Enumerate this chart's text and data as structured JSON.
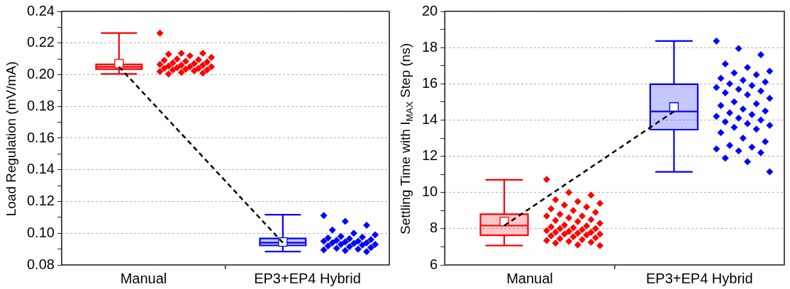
{
  "chart_data": [
    {
      "type": "box",
      "categories": [
        "Manual",
        "EP3+EP4 Hybrid"
      ],
      "ylabel": "Load Regulation (mV/mA)",
      "ylim": [
        0.08,
        0.24
      ],
      "yticks": [
        0.08,
        {
          "value": 0.09,
          "label": null
        },
        {
          "value": 0.1,
          "label": "0.10"
        },
        {
          "value": 0.11,
          "label": null
        },
        0.12,
        {
          "value": 0.13,
          "label": null
        },
        0.14,
        {
          "value": 0.15,
          "label": null
        },
        0.16,
        {
          "value": 0.17,
          "label": null
        },
        0.18,
        {
          "value": 0.19,
          "label": null
        },
        {
          "value": 0.2,
          "label": "0.20"
        },
        {
          "value": 0.21,
          "label": null
        },
        0.22,
        {
          "value": 0.23,
          "label": null
        },
        0.24
      ],
      "grid": "y",
      "series": [
        {
          "colors": [
            "#ff0000",
            "#0000ff"
          ],
          "boxes": [
            {
              "low": 0.2005,
              "q1": 0.2035,
              "median": 0.205,
              "q3": 0.2065,
              "high": 0.2263,
              "mean": 0.207
            },
            {
              "low": 0.0884,
              "q1": 0.0923,
              "median": 0.094,
              "q3": 0.0967,
              "high": 0.1117,
              "mean": 0.0945
            }
          ]
        },
        {
          "type": "scatter",
          "color": "#ff0000",
          "marker": "diamond",
          "x": [
            "Manual",
            "Manual",
            "Manual",
            "Manual",
            "Manual",
            "Manual",
            "Manual",
            "Manual",
            "Manual",
            "Manual",
            "Manual",
            "Manual",
            "Manual",
            "Manual",
            "Manual",
            "Manual",
            "Manual",
            "Manual",
            "Manual",
            "Manual",
            "Manual",
            "Manual",
            "Manual",
            "Manual",
            "Manual",
            "Manual",
            "Manual",
            "Manual",
            "Manual",
            "Manual"
          ],
          "values": [
            0.2263,
            0.2135,
            0.2135,
            0.213,
            0.212,
            0.211,
            0.21,
            0.2095,
            0.209,
            0.2085,
            0.208,
            0.2075,
            0.207,
            0.2065,
            0.206,
            0.206,
            0.2055,
            0.205,
            0.205,
            0.2045,
            0.204,
            0.204,
            0.2035,
            0.203,
            0.203,
            0.2025,
            0.202,
            0.2015,
            0.201,
            0.2005
          ]
        },
        {
          "type": "scatter",
          "color": "#0000ff",
          "marker": "diamond",
          "x": [
            "EP3+EP4 Hybrid",
            "EP3+EP4 Hybrid",
            "EP3+EP4 Hybrid",
            "EP3+EP4 Hybrid",
            "EP3+EP4 Hybrid",
            "EP3+EP4 Hybrid",
            "EP3+EP4 Hybrid",
            "EP3+EP4 Hybrid",
            "EP3+EP4 Hybrid",
            "EP3+EP4 Hybrid",
            "EP3+EP4 Hybrid",
            "EP3+EP4 Hybrid",
            "EP3+EP4 Hybrid",
            "EP3+EP4 Hybrid",
            "EP3+EP4 Hybrid",
            "EP3+EP4 Hybrid",
            "EP3+EP4 Hybrid",
            "EP3+EP4 Hybrid",
            "EP3+EP4 Hybrid",
            "EP3+EP4 Hybrid",
            "EP3+EP4 Hybrid",
            "EP3+EP4 Hybrid",
            "EP3+EP4 Hybrid",
            "EP3+EP4 Hybrid",
            "EP3+EP4 Hybrid",
            "EP3+EP4 Hybrid",
            "EP3+EP4 Hybrid",
            "EP3+EP4 Hybrid",
            "EP3+EP4 Hybrid"
          ],
          "values": [
            0.1112,
            0.1075,
            0.105,
            0.102,
            0.1,
            0.099,
            0.098,
            0.0975,
            0.097,
            0.0965,
            0.096,
            0.0955,
            0.095,
            0.095,
            0.0945,
            0.094,
            0.094,
            0.0935,
            0.093,
            0.093,
            0.0925,
            0.092,
            0.0915,
            0.091,
            0.0905,
            0.09,
            0.0895,
            0.089,
            0.0884
          ]
        },
        {
          "type": "line",
          "color": "#000000",
          "line_style": "dashed",
          "marker": "none",
          "x": [
            "Manual",
            "EP3+EP4 Hybrid"
          ],
          "values": [
            0.205,
            0.094
          ]
        }
      ]
    },
    {
      "type": "box",
      "categories": [
        "Manual",
        "EP3+EP4 Hybrid"
      ],
      "ylabel": "Settling Time with I$_{MAX}$ Step (ns)",
      "ylim": [
        6,
        20
      ],
      "yticks": [
        6,
        {
          "value": 7,
          "label": null
        },
        8,
        {
          "value": 9,
          "label": null
        },
        10,
        {
          "value": 11,
          "label": null
        },
        12,
        {
          "value": 13,
          "label": null
        },
        14,
        {
          "value": 15,
          "label": null
        },
        16,
        {
          "value": 17,
          "label": null
        },
        18,
        {
          "value": 19,
          "label": null
        },
        20
      ],
      "grid": "y",
      "series": [
        {
          "colors": [
            "#ff0000",
            "#0000ff"
          ],
          "boxes": [
            {
              "low": 7.07,
              "q1": 7.64,
              "median": 8.17,
              "q3": 8.8,
              "high": 10.7,
              "mean": 8.4
            },
            {
              "low": 11.14,
              "q1": 13.47,
              "median": 14.47,
              "q3": 15.98,
              "high": 18.36,
              "mean": 14.72
            }
          ]
        },
        {
          "type": "scatter",
          "color": "#ff0000",
          "marker": "diamond",
          "x": [
            "Manual",
            "Manual",
            "Manual",
            "Manual",
            "Manual",
            "Manual",
            "Manual",
            "Manual",
            "Manual",
            "Manual",
            "Manual",
            "Manual",
            "Manual",
            "Manual",
            "Manual",
            "Manual",
            "Manual",
            "Manual",
            "Manual",
            "Manual",
            "Manual",
            "Manual",
            "Manual",
            "Manual",
            "Manual",
            "Manual",
            "Manual",
            "Manual",
            "Manual",
            "Manual",
            "Manual",
            "Manual",
            "Manual",
            "Manual",
            "Manual",
            "Manual",
            "Manual",
            "Manual",
            "Manual",
            "Manual",
            "Manual",
            "Manual",
            "Manual",
            "Manual",
            "Manual"
          ],
          "values": [
            10.72,
            10.0,
            9.85,
            9.6,
            9.5,
            9.4,
            9.3,
            9.2,
            9.1,
            9.0,
            8.9,
            8.8,
            8.7,
            8.7,
            8.6,
            8.5,
            8.45,
            8.4,
            8.3,
            8.2,
            8.15,
            8.1,
            8.05,
            8.0,
            8.0,
            7.95,
            7.9,
            7.85,
            7.8,
            7.8,
            7.75,
            7.7,
            7.7,
            7.65,
            7.6,
            7.55,
            7.5,
            7.45,
            7.4,
            7.35,
            7.3,
            7.25,
            7.2,
            7.1,
            7.07
          ]
        },
        {
          "type": "scatter",
          "color": "#0000ff",
          "marker": "diamond",
          "x": [
            "EP3+EP4 Hybrid",
            "EP3+EP4 Hybrid",
            "EP3+EP4 Hybrid",
            "EP3+EP4 Hybrid",
            "EP3+EP4 Hybrid",
            "EP3+EP4 Hybrid",
            "EP3+EP4 Hybrid",
            "EP3+EP4 Hybrid",
            "EP3+EP4 Hybrid",
            "EP3+EP4 Hybrid",
            "EP3+EP4 Hybrid",
            "EP3+EP4 Hybrid",
            "EP3+EP4 Hybrid",
            "EP3+EP4 Hybrid",
            "EP3+EP4 Hybrid",
            "EP3+EP4 Hybrid",
            "EP3+EP4 Hybrid",
            "EP3+EP4 Hybrid",
            "EP3+EP4 Hybrid",
            "EP3+EP4 Hybrid",
            "EP3+EP4 Hybrid",
            "EP3+EP4 Hybrid",
            "EP3+EP4 Hybrid",
            "EP3+EP4 Hybrid",
            "EP3+EP4 Hybrid",
            "EP3+EP4 Hybrid",
            "EP3+EP4 Hybrid",
            "EP3+EP4 Hybrid",
            "EP3+EP4 Hybrid",
            "EP3+EP4 Hybrid",
            "EP3+EP4 Hybrid",
            "EP3+EP4 Hybrid",
            "EP3+EP4 Hybrid",
            "EP3+EP4 Hybrid",
            "EP3+EP4 Hybrid",
            "EP3+EP4 Hybrid",
            "EP3+EP4 Hybrid",
            "EP3+EP4 Hybrid",
            "EP3+EP4 Hybrid",
            "EP3+EP4 Hybrid",
            "EP3+EP4 Hybrid",
            "EP3+EP4 Hybrid",
            "EP3+EP4 Hybrid",
            "EP3+EP4 Hybrid",
            "EP3+EP4 Hybrid"
          ],
          "values": [
            18.36,
            17.95,
            17.6,
            17.1,
            16.9,
            16.7,
            16.6,
            16.5,
            16.3,
            16.2,
            16.1,
            16.0,
            15.9,
            15.8,
            15.7,
            15.6,
            15.5,
            15.4,
            15.2,
            15.0,
            14.9,
            14.8,
            14.6,
            14.5,
            14.4,
            14.3,
            14.2,
            14.1,
            14.0,
            13.9,
            13.8,
            13.7,
            13.6,
            13.5,
            13.3,
            13.0,
            12.8,
            12.6,
            12.5,
            12.4,
            12.3,
            12.2,
            11.9,
            11.7,
            11.14
          ]
        },
        {
          "type": "line",
          "color": "#000000",
          "line_style": "dashed",
          "marker": "none",
          "x": [
            "Manual",
            "EP3+EP4 Hybrid"
          ],
          "values": [
            8.17,
            14.47
          ]
        }
      ]
    }
  ]
}
